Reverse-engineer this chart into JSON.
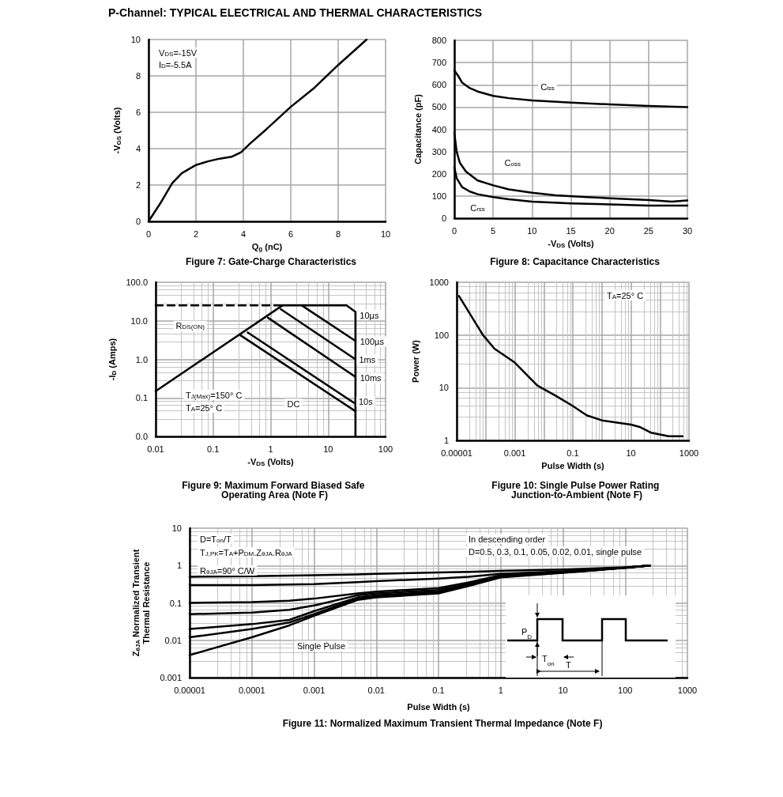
{
  "chart_data": [
    {
      "type": "line",
      "subtitle": "P-Channel: TYPICAL ELECTRICAL AND THERMAL CHARACTERISTICS",
      "title": "Figure 7: Gate-Charge Characteristics",
      "xlabel": "Q$_{g}$ (nC)",
      "ylabel": "-V$_{GS}$ (Volts)",
      "x": [
        0,
        0.5,
        1,
        1.4,
        2,
        2.5,
        3,
        3.5,
        3.9,
        4.3,
        5,
        6,
        7,
        8,
        9.2
      ],
      "series": [
        {
          "color": "#000000",
          "values": [
            0,
            1,
            2.1,
            2.65,
            3.1,
            3.3,
            3.45,
            3.55,
            3.8,
            4.3,
            5.1,
            6.3,
            7.35,
            8.6,
            10
          ]
        }
      ],
      "xlim": [
        0,
        10
      ],
      "ylim": [
        0,
        10
      ],
      "xticks": [
        0,
        2,
        4,
        6,
        8,
        10
      ],
      "yticks": [
        0,
        2,
        4,
        6,
        8,
        10
      ],
      "grid": true,
      "marker": "none",
      "line_style": "solid",
      "annotations": [
        "V$_{DS}$=-15V",
        "I$_{D}$=-5.5A"
      ]
    },
    {
      "type": "line",
      "title": "Figure 8: Capacitance Characteristics",
      "xlabel": "-V$_{DS}$ (Volts)",
      "ylabel": "Capacitance (pF)",
      "series": [
        {
          "name": "C$_{iss}$",
          "color": "#000000",
          "x": [
            0,
            0.5,
            1,
            2,
            3,
            5,
            7,
            10,
            15,
            20,
            25,
            30
          ],
          "values": [
            665,
            640,
            610,
            585,
            570,
            550,
            540,
            530,
            520,
            512,
            505,
            500
          ]
        },
        {
          "name": "C$_{oss}$",
          "color": "#000000",
          "x": [
            0,
            0.3,
            0.7,
            1.5,
            3,
            5,
            7,
            10,
            13,
            17,
            20,
            25,
            28,
            30
          ],
          "values": [
            385,
            300,
            250,
            210,
            170,
            148,
            130,
            115,
            103,
            95,
            90,
            82,
            75,
            80
          ]
        },
        {
          "name": "C$_{rss}$",
          "color": "#000000",
          "x": [
            0,
            0.3,
            1,
            2,
            3,
            5,
            7,
            10,
            15,
            20,
            25,
            30
          ],
          "values": [
            230,
            180,
            140,
            120,
            108,
            95,
            85,
            75,
            67,
            62,
            57,
            57
          ]
        }
      ],
      "xlim": [
        0,
        30
      ],
      "ylim": [
        0,
        800
      ],
      "xticks": [
        0,
        5,
        10,
        15,
        20,
        25,
        30
      ],
      "yticks": [
        0,
        100,
        200,
        300,
        400,
        500,
        600,
        700,
        800
      ],
      "grid": true,
      "marker": "none",
      "line_style": "solid"
    },
    {
      "type": "line",
      "title": "Figure 9: Maximum Forward Biased Safe Operating Area (Note F)",
      "xlabel": "-V$_{DS}$ (Volts)",
      "ylabel": "-I$_{D}$ (Amps)",
      "series": [
        {
          "name": "R$_{DS(ON)}$",
          "color": "#000000",
          "x": [
            0.01,
            1.6
          ],
          "values": [
            0.15,
            25
          ]
        },
        {
          "name": "10µs",
          "color": "#000000",
          "x": [
            1.6,
            21,
            30,
            30
          ],
          "values": [
            25,
            25,
            17,
            0.01
          ]
        },
        {
          "name": "100µs",
          "color": "#000000",
          "x": [
            3.5,
            30
          ],
          "values": [
            25,
            3
          ]
        },
        {
          "name": "1ms",
          "color": "#000000",
          "x": [
            1.5,
            30
          ],
          "values": [
            20,
            1
          ]
        },
        {
          "name": "10ms",
          "color": "#000000",
          "x": [
            0.9,
            30
          ],
          "values": [
            12,
            0.35
          ]
        },
        {
          "name": "10s",
          "color": "#000000",
          "x": [
            0.4,
            30
          ],
          "values": [
            5,
            0.07
          ]
        },
        {
          "name": "DC",
          "color": "#000000",
          "x": [
            0.3,
            30
          ],
          "values": [
            4.2,
            0.045
          ]
        },
        {
          "color": "#000000",
          "x": [
            0.01,
            1.5
          ],
          "values": [
            25,
            25
          ],
          "line_style": "dashed"
        }
      ],
      "xlim": [
        0.01,
        100
      ],
      "ylim": [
        0.01,
        100
      ],
      "xticks": [
        0.01,
        0.1,
        1,
        10,
        100
      ],
      "yticks": [
        {
          "value": 0.01,
          "label": "0.0"
        },
        {
          "value": 0.1,
          "label": "0.1"
        },
        {
          "value": 1,
          "label": "1.0"
        },
        {
          "value": 10,
          "label": "10.0"
        },
        {
          "value": 100,
          "label": "100.0"
        }
      ],
      "log": "xy",
      "grid": true,
      "marker": "none",
      "line_style": "solid",
      "annotations": [
        "T$_{J(Max)}$=150° C",
        "T$_{A}$=25° C"
      ]
    },
    {
      "type": "line",
      "title": "Figure 10: Single Pulse Power Rating Junction-to-Ambient (Note F)",
      "xlabel": "Pulse Width (s)",
      "ylabel": "Power (W)",
      "x": [
        1.2e-05,
        8e-05,
        0.0002,
        0.001,
        0.006,
        0.026,
        0.1,
        0.3,
        1,
        3,
        10,
        20,
        50,
        200,
        600
      ],
      "series": [
        {
          "color": "#000000",
          "values": [
            550,
            100,
            55,
            30,
            11,
            7,
            4.5,
            3,
            2.4,
            2.2,
            2,
            1.8,
            1.4,
            1.2,
            1.2
          ]
        }
      ],
      "xlim": [
        1e-05,
        1000
      ],
      "ylim": [
        1,
        1000
      ],
      "xticks": [
        {
          "value": 1e-05,
          "label": "0.00001"
        },
        0.001,
        0.1,
        10,
        1000
      ],
      "yticks": [
        1,
        10,
        100,
        1000
      ],
      "log": "xy",
      "grid": true,
      "marker": "none",
      "line_style": "solid",
      "annotations": [
        "T$_{A}$=25° C"
      ]
    },
    {
      "type": "line",
      "title": "Figure 11: Normalized Maximum Transient Thermal Impedance (Note F)",
      "xlabel": "Pulse Width (s)",
      "ylabel": "Z$_{θJA}$ Normalized Transient Thermal Resistance",
      "x": [
        1e-05,
        0.0001,
        0.0004,
        0.001,
        0.005,
        0.01,
        0.1,
        0.3,
        1,
        10,
        100,
        250
      ],
      "series": [
        {
          "color": "#000000",
          "values": [
            0.5,
            0.52,
            0.54,
            0.55,
            0.58,
            0.6,
            0.65,
            0.68,
            0.72,
            0.78,
            0.9,
            1
          ]
        },
        {
          "color": "#000000",
          "values": [
            0.3,
            0.3,
            0.31,
            0.32,
            0.36,
            0.38,
            0.45,
            0.5,
            0.6,
            0.7,
            0.88,
            1
          ]
        },
        {
          "color": "#000000",
          "values": [
            0.1,
            0.105,
            0.115,
            0.13,
            0.18,
            0.2,
            0.25,
            0.35,
            0.55,
            0.68,
            0.88,
            1
          ]
        },
        {
          "color": "#000000",
          "values": [
            0.05,
            0.055,
            0.065,
            0.085,
            0.16,
            0.18,
            0.22,
            0.32,
            0.52,
            0.66,
            0.88,
            1
          ]
        },
        {
          "color": "#000000",
          "values": [
            0.02,
            0.027,
            0.035,
            0.06,
            0.14,
            0.16,
            0.2,
            0.3,
            0.5,
            0.65,
            0.87,
            1
          ]
        },
        {
          "color": "#000000",
          "values": [
            0.012,
            0.02,
            0.03,
            0.05,
            0.13,
            0.15,
            0.19,
            0.29,
            0.5,
            0.65,
            0.87,
            1
          ]
        },
        {
          "name": "Single Pulse",
          "color": "#000000",
          "values": [
            0.004,
            0.012,
            0.025,
            0.045,
            0.12,
            0.14,
            0.18,
            0.28,
            0.48,
            0.64,
            0.86,
            1
          ]
        }
      ],
      "xlim": [
        1e-05,
        1000
      ],
      "ylim": [
        0.001,
        10
      ],
      "xticks": [
        {
          "value": 1e-05,
          "label": "0.00001"
        },
        0.0001,
        0.001,
        0.01,
        0.1,
        1,
        10,
        100,
        1000
      ],
      "yticks": [
        0.001,
        0.01,
        0.1,
        1,
        10
      ],
      "log": "xy",
      "grid": true,
      "marker": "none",
      "line_style": "solid",
      "annotations": [
        "D=T$_{on}$/T",
        "T$_{J,PK}$=T$_{A}$+P$_{DM}$.Z$_{θJA}$.R$_{θJA}$",
        "R$_{θJA}$=90° C/W",
        "In descending order",
        "D=0.5, 0.3, 0.1, 0.05, 0.02, 0.01, single pulse",
        "P$_{D}$",
        "T$_{on}$",
        "T"
      ]
    }
  ]
}
